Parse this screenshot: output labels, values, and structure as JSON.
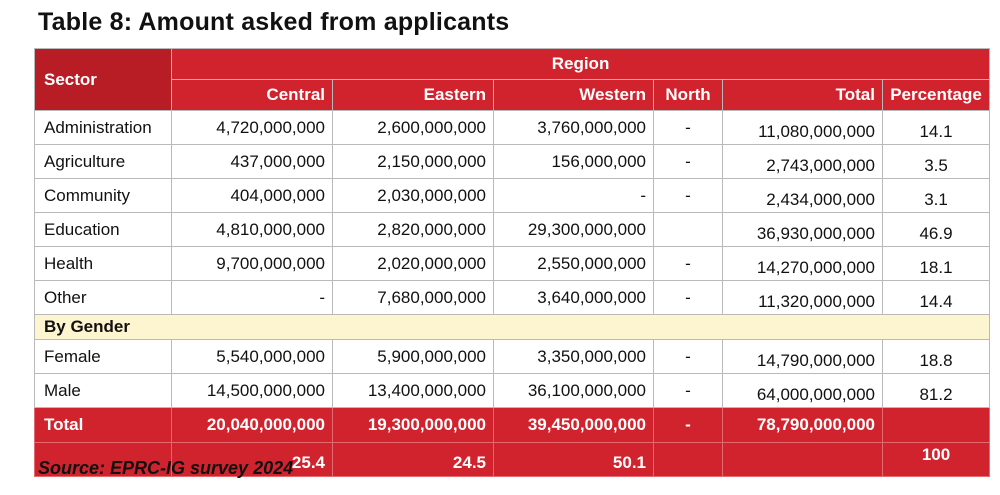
{
  "title": "Table 8: Amount asked from applicants",
  "header": {
    "sector": "Sector",
    "region": "Region",
    "columns": [
      "Central",
      "Eastern",
      "Western",
      "North",
      "Total",
      "Percentage"
    ]
  },
  "rows": [
    {
      "sector": "Administration",
      "central": "4,720,000,000",
      "eastern": "2,600,000,000",
      "western": "3,760,000,000",
      "north": "-",
      "total": "11,080,000,000",
      "percentage": "14.1"
    },
    {
      "sector": "Agriculture",
      "central": "437,000,000",
      "eastern": "2,150,000,000",
      "western": "156,000,000",
      "north": "-",
      "total": "2,743,000,000",
      "percentage": "3.5"
    },
    {
      "sector": "Community",
      "central": "404,000,000",
      "eastern": "2,030,000,000",
      "western": "-",
      "north": "-",
      "total": "2,434,000,000",
      "percentage": "3.1"
    },
    {
      "sector": "Education",
      "central": "4,810,000,000",
      "eastern": "2,820,000,000",
      "western": "29,300,000,000",
      "north": "",
      "total": "36,930,000,000",
      "percentage": "46.9"
    },
    {
      "sector": "Health",
      "central": "9,700,000,000",
      "eastern": "2,020,000,000",
      "western": "2,550,000,000",
      "north": "-",
      "total": "14,270,000,000",
      "percentage": "18.1"
    },
    {
      "sector": "Other",
      "central": "-",
      "eastern": "7,680,000,000",
      "western": "3,640,000,000",
      "north": "-",
      "total": "11,320,000,000",
      "percentage": "14.4"
    }
  ],
  "gender_label": "By Gender",
  "gender_rows": [
    {
      "sector": "Female",
      "central": "5,540,000,000",
      "eastern": "5,900,000,000",
      "western": "3,350,000,000",
      "north": "-",
      "total": "14,790,000,000",
      "percentage": "18.8"
    },
    {
      "sector": "Male",
      "central": "14,500,000,000",
      "eastern": "13,400,000,000",
      "western": "36,100,000,000",
      "north": "-",
      "total": "64,000,000,000",
      "percentage": "81.2"
    }
  ],
  "totals": {
    "label": "Total",
    "central": "20,040,000,000",
    "eastern": "19,300,000,000",
    "western": "39,450,000,000",
    "north": "-",
    "total": "78,790,000,000",
    "percentage": ""
  },
  "percentages_row": {
    "central": "25.4",
    "eastern": "24.5",
    "western": "50.1",
    "total_pct": "100"
  },
  "source": "Source: EPRC-IG survey 2024",
  "colors": {
    "header_red": "#d1232d",
    "sector_header_red": "#b81d26",
    "gender_band": "#fdf5cf"
  }
}
